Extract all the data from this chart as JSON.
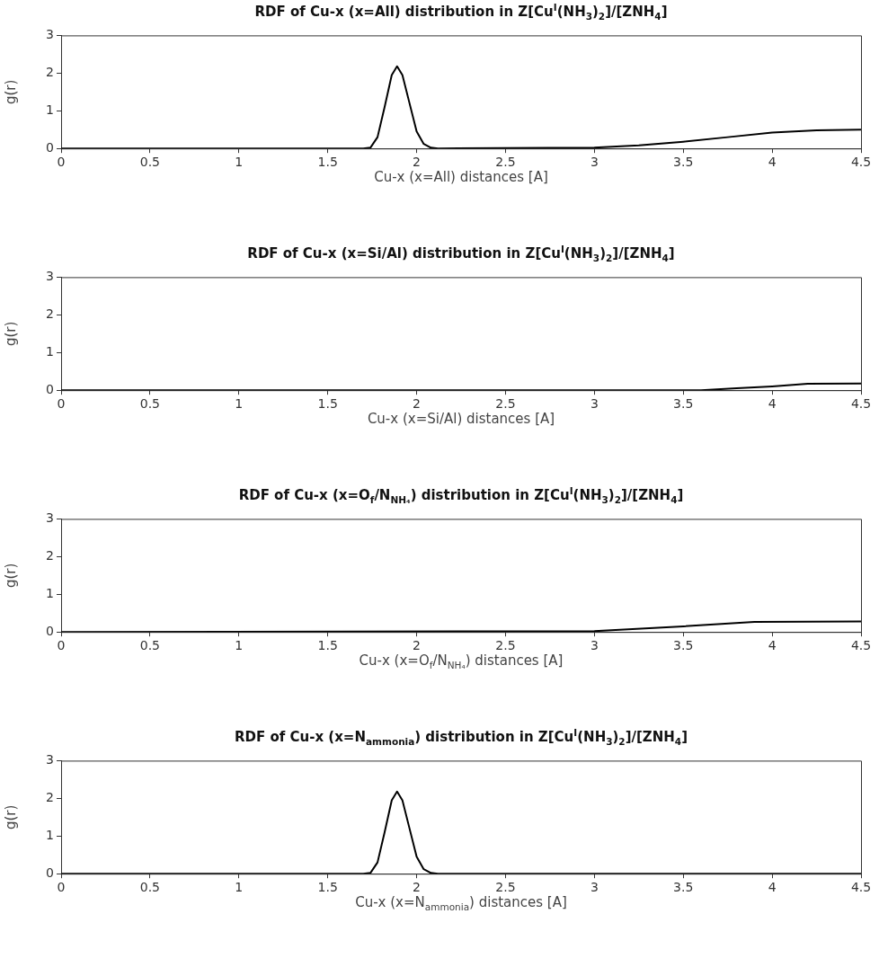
{
  "chart_data": [
    {
      "type": "line",
      "title": "RDF of Cu-x (x=All) distribution in Z[Cu$^{I}$(NH$_{3}$)$_{2}$]/[ZNH$_{4}$]",
      "xlabel": "Cu-x (x=All) distances [A]",
      "ylabel": "g(r)",
      "xlim": [
        0,
        4.5
      ],
      "xticks": [
        0,
        0.5,
        1,
        1.5,
        2,
        2.5,
        3,
        3.5,
        4,
        4.5
      ],
      "ylim": [
        0,
        3
      ],
      "yticks": [
        0,
        1,
        2,
        3
      ],
      "grid": false,
      "legend": false,
      "marker": "none",
      "line_style": "solid",
      "x": [
        0,
        1.7,
        1.74,
        1.78,
        1.82,
        1.86,
        1.89,
        1.92,
        1.96,
        2.0,
        2.04,
        2.08,
        2.12,
        3.0,
        3.25,
        3.5,
        3.75,
        4.0,
        4.25,
        4.5
      ],
      "series": [
        {
          "color": "#000000",
          "values": [
            0,
            0,
            0.02,
            0.3,
            1.1,
            1.95,
            2.18,
            1.95,
            1.2,
            0.45,
            0.12,
            0.02,
            0,
            0.02,
            0.08,
            0.18,
            0.3,
            0.42,
            0.48,
            0.5
          ]
        }
      ]
    },
    {
      "type": "line",
      "title": "RDF of Cu-x (x=Si/Al) distribution in Z[Cu$^{I}$(NH$_{3}$)$_{2}$]/[ZNH$_{4}$]",
      "xlabel": "Cu-x (x=Si/Al) distances [A]",
      "ylabel": "g(r)",
      "xlim": [
        0,
        4.5
      ],
      "xticks": [
        0,
        0.5,
        1,
        1.5,
        2,
        2.5,
        3,
        3.5,
        4,
        4.5
      ],
      "ylim": [
        0,
        3
      ],
      "yticks": [
        0,
        1,
        2,
        3
      ],
      "grid": false,
      "legend": false,
      "marker": "none",
      "line_style": "solid",
      "x": [
        0,
        3.6,
        3.8,
        4.0,
        4.2,
        4.5
      ],
      "series": [
        {
          "color": "#000000",
          "values": [
            0,
            0,
            0.05,
            0.1,
            0.17,
            0.18
          ]
        }
      ]
    },
    {
      "type": "line",
      "title": "RDF of Cu-x (x=O$_{f}$/N$_{NH₄}$) distribution in Z[Cu$^{I}$(NH$_{3}$)$_{2}$]/[ZNH$_{4}$]",
      "xlabel": "Cu-x (x=O$_{f}$/N$_{NH₄}$) distances [A]",
      "ylabel": "g(r)",
      "xlim": [
        0,
        4.5
      ],
      "xticks": [
        0,
        0.5,
        1,
        1.5,
        2,
        2.5,
        3,
        3.5,
        4,
        4.5
      ],
      "ylim": [
        0,
        3
      ],
      "yticks": [
        0,
        1,
        2,
        3
      ],
      "grid": false,
      "legend": false,
      "marker": "none",
      "line_style": "solid",
      "x": [
        0,
        3.0,
        3.5,
        3.9,
        4.5
      ],
      "series": [
        {
          "color": "#000000",
          "values": [
            0,
            0.02,
            0.15,
            0.27,
            0.28
          ]
        }
      ]
    },
    {
      "type": "line",
      "title": "RDF of Cu-x (x=N$_{ammonia}$) distribution in Z[Cu$^{I}$(NH$_{3}$)$_{2}$]/[ZNH$_{4}$]",
      "xlabel": "Cu-x (x=N$_{ammonia}$) distances [A]",
      "ylabel": "g(r)",
      "xlim": [
        0,
        4.5
      ],
      "xticks": [
        0,
        0.5,
        1,
        1.5,
        2,
        2.5,
        3,
        3.5,
        4,
        4.5
      ],
      "ylim": [
        0,
        3
      ],
      "yticks": [
        0,
        1,
        2,
        3
      ],
      "grid": false,
      "legend": false,
      "marker": "none",
      "line_style": "solid",
      "x": [
        0,
        1.7,
        1.74,
        1.78,
        1.82,
        1.86,
        1.89,
        1.92,
        1.96,
        2.0,
        2.04,
        2.08,
        2.12,
        4.5
      ],
      "series": [
        {
          "color": "#000000",
          "values": [
            0,
            0,
            0.02,
            0.3,
            1.1,
            1.95,
            2.18,
            1.95,
            1.2,
            0.45,
            0.12,
            0.02,
            0,
            0
          ]
        }
      ]
    }
  ]
}
